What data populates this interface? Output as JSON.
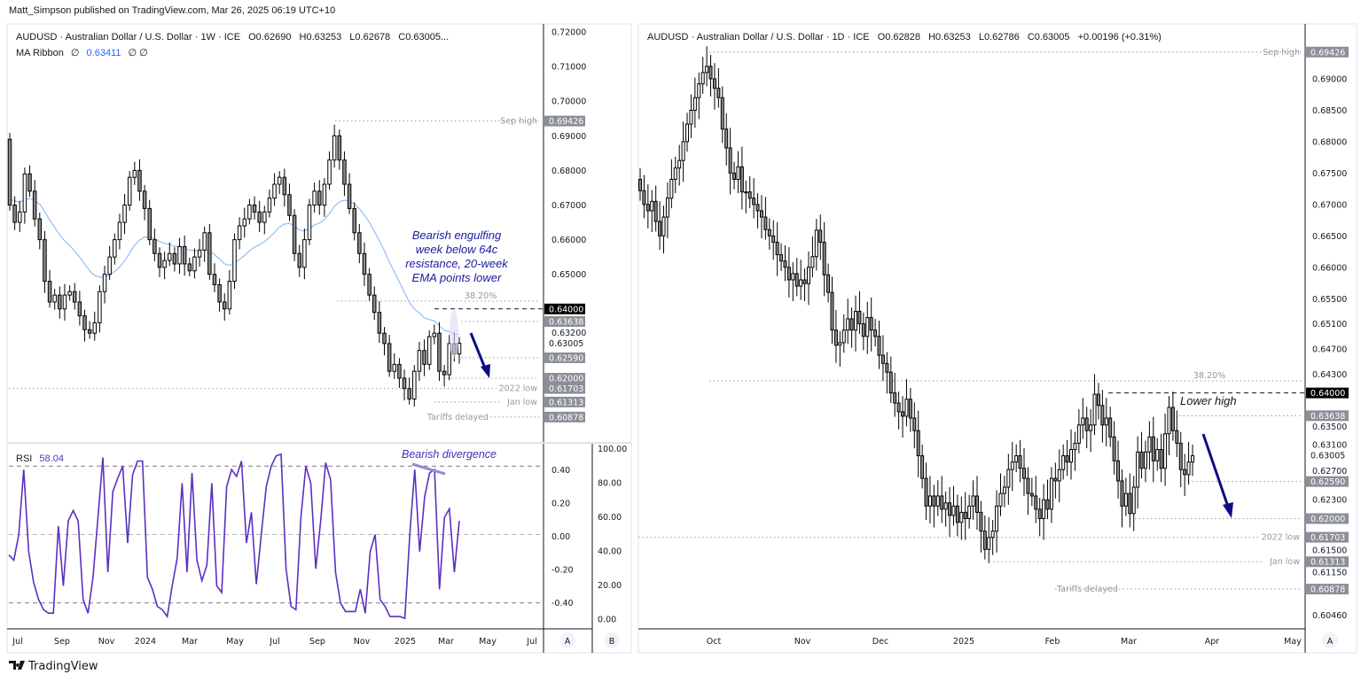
{
  "header": {
    "published": "Matt_Simpson published on TradingView.com, Mar 26, 2025 06:19 UTC+10"
  },
  "left_chart": {
    "title": "AUDUSD · Australian Dollar / U.S. Dollar · 1W · ICE",
    "ohlc": {
      "o": "O0.62690",
      "h": "H0.63253",
      "l": "L0.62678",
      "c": "C0.63005..."
    },
    "ma_label": "MA Ribbon",
    "ma_sym": "∅",
    "ma_value": "0.63411",
    "ma_sym2": "∅ ∅",
    "annotation": [
      "Bearish engulfing",
      "week below 64c",
      "resistance, 20-week",
      "EMA points lower"
    ],
    "fib_label": "38.20%",
    "level_notes": {
      "sep_high": "Sep high",
      "low_2022": "2022 low",
      "jan_low": "Jan low",
      "tariffs": "Tariffs delayed"
    },
    "price_ticks": [
      "0.72000",
      "0.71000",
      "0.70000",
      "0.69000",
      "0.68000",
      "0.67000",
      "0.66000",
      "0.65000",
      "0.63200"
    ],
    "price_labels": {
      "sep_high": "0.69426",
      "r64": "0.64000",
      "r636": "0.63638",
      "current": "0.63005",
      "s6259": "0.62590",
      "s62": "0.62000",
      "low_2022": "0.61703",
      "jan_low": "0.61313",
      "tariffs": "0.60878"
    },
    "time_labels": [
      "Jul",
      "Sep",
      "Nov",
      "2024",
      "Mar",
      "May",
      "Jul",
      "Sep",
      "Nov",
      "2025",
      "Mar",
      "May",
      "Jul"
    ],
    "rsi": {
      "label": "RSI",
      "value": "58.04",
      "annotation": "Bearish divergence",
      "axis_a": [
        "0.40",
        "0.20",
        "0.00",
        "-0.20",
        "-0.40"
      ],
      "axis_b": [
        "100.00",
        "80.00",
        "60.00",
        "40.00",
        "20.00",
        "0.00"
      ]
    },
    "scale_buttons": [
      "A",
      "B"
    ]
  },
  "right_chart": {
    "title": "AUDUSD · Australian Dollar / U.S. Dollar · 1D · ICE",
    "ohlc": {
      "o": "O0.62828",
      "h": "H0.63253",
      "l": "L0.62786",
      "c": "C0.63005",
      "chg": "+0.00196 (+0.31%)"
    },
    "fib_label": "38.20%",
    "annotation": "Lower high",
    "level_notes": {
      "sep_high": "Sep high",
      "low_2022": "2022 low",
      "jan_low": "Jan low",
      "tariffs": "Tariffs delayed"
    },
    "price_ticks": [
      "0.69000",
      "0.68500",
      "0.68000",
      "0.67500",
      "0.67000",
      "0.66500",
      "0.66000",
      "0.65500",
      "0.65100",
      "0.64700",
      "0.64300",
      "0.63500",
      "0.63100",
      "0.62700",
      "0.62300",
      "0.61500",
      "0.61150",
      "0.60460"
    ],
    "price_labels": {
      "sep_high": "0.69426",
      "r64": "0.64000",
      "r636": "0.63638",
      "current": "0.63005",
      "s6259": "0.62590",
      "s62": "0.62000",
      "low_2022": "0.61703",
      "jan_low": "0.61313",
      "tariffs": "0.60878"
    },
    "time_labels": [
      "Oct",
      "Nov",
      "Dec",
      "2025",
      "Feb",
      "Mar",
      "Apr",
      "May"
    ],
    "scale_buttons": [
      "A"
    ]
  },
  "footer": {
    "brand": "TradingView"
  },
  "colors": {
    "bull_fill": "#ffffff",
    "bear_fill": "#8a8a8a",
    "outline": "#000000",
    "ema": "#90bff9",
    "rsi": "#5b2fc0",
    "arrow": "#0d0d80",
    "annotation": "#1a1a9c"
  },
  "chart_data": [
    {
      "type": "candlestick",
      "timeframe": "1W",
      "x_range": [
        "Jun 2023",
        "Mar 2025"
      ],
      "ylim": [
        0.6046,
        0.72
      ],
      "open_first": 0.689,
      "close": [
        0.67,
        0.665,
        0.668,
        0.679,
        0.674,
        0.666,
        0.66,
        0.648,
        0.642,
        0.644,
        0.64,
        0.644,
        0.645,
        0.642,
        0.638,
        0.634,
        0.633,
        0.636,
        0.645,
        0.65,
        0.655,
        0.66,
        0.665,
        0.67,
        0.678,
        0.68,
        0.674,
        0.669,
        0.66,
        0.656,
        0.652,
        0.654,
        0.656,
        0.653,
        0.658,
        0.653,
        0.651,
        0.655,
        0.657,
        0.662,
        0.65,
        0.647,
        0.642,
        0.64,
        0.648,
        0.66,
        0.664,
        0.666,
        0.67,
        0.668,
        0.665,
        0.668,
        0.672,
        0.676,
        0.678,
        0.673,
        0.667,
        0.656,
        0.652,
        0.66,
        0.67,
        0.674,
        0.67,
        0.676,
        0.683,
        0.69,
        0.683,
        0.676,
        0.669,
        0.662,
        0.656,
        0.65,
        0.644,
        0.639,
        0.633,
        0.63,
        0.622,
        0.624,
        0.62,
        0.617,
        0.614,
        0.622,
        0.628,
        0.624,
        0.632,
        0.633,
        0.622,
        0.621,
        0.63,
        0.627,
        0.6301
      ],
      "ema_period": 20,
      "rsi": [
        38,
        35,
        50,
        88,
        40,
        22,
        12,
        6,
        4,
        4,
        55,
        20,
        58,
        64,
        58,
        12,
        4,
        25,
        60,
        95,
        28,
        75,
        83,
        90,
        45,
        85,
        93,
        93,
        25,
        18,
        8,
        6,
        2,
        20,
        36,
        80,
        28,
        86,
        35,
        23,
        32,
        80,
        20,
        16,
        78,
        88,
        84,
        93,
        45,
        63,
        21,
        50,
        78,
        90,
        96,
        97,
        30,
        8,
        6,
        60,
        90,
        80,
        30,
        58,
        92,
        82,
        28,
        10,
        5,
        5,
        5,
        18,
        4,
        40,
        50,
        12,
        8,
        2,
        2,
        2,
        1,
        50,
        88,
        40,
        72,
        86,
        88,
        18,
        60,
        65,
        28,
        58
      ]
    },
    {
      "type": "candlestick",
      "timeframe": "1D",
      "x_range": [
        "Sep 2024",
        "Mar 2025"
      ],
      "ylim": [
        0.6046,
        0.6943
      ],
      "open_first": 0.674,
      "close": [
        0.6722,
        0.67,
        0.669,
        0.6705,
        0.6673,
        0.665,
        0.668,
        0.671,
        0.674,
        0.6758,
        0.677,
        0.68,
        0.6828,
        0.685,
        0.687,
        0.6892,
        0.691,
        0.692,
        0.69,
        0.6885,
        0.687,
        0.682,
        0.679,
        0.675,
        0.674,
        0.676,
        0.672,
        0.672,
        0.671,
        0.67,
        0.669,
        0.668,
        0.666,
        0.665,
        0.664,
        0.662,
        0.661,
        0.66,
        0.658,
        0.659,
        0.657,
        0.658,
        0.6574,
        0.66,
        0.6617,
        0.6659,
        0.664,
        0.6588,
        0.656,
        0.65,
        0.6476,
        0.648,
        0.65,
        0.6518,
        0.65,
        0.653,
        0.651,
        0.649,
        0.652,
        0.65,
        0.649,
        0.646,
        0.6447,
        0.6433,
        0.64,
        0.6384,
        0.637,
        0.6363,
        0.639,
        0.636,
        0.634,
        0.63,
        0.6264,
        0.622,
        0.6236,
        0.622,
        0.6236,
        0.6215,
        0.6225,
        0.6205,
        0.622,
        0.6194,
        0.621,
        0.62,
        0.622,
        0.6236,
        0.621,
        0.618,
        0.6151,
        0.617,
        0.618,
        0.622,
        0.624,
        0.625,
        0.6278,
        0.629,
        0.63,
        0.628,
        0.6264,
        0.624,
        0.6236,
        0.6215,
        0.62,
        0.623,
        0.6215,
        0.6264,
        0.626,
        0.6278,
        0.63,
        0.629,
        0.631,
        0.632,
        0.6349,
        0.636,
        0.634,
        0.6349,
        0.6398,
        0.638,
        0.6349,
        0.636,
        0.633,
        0.6292,
        0.626,
        0.622,
        0.624,
        0.6208,
        0.625,
        0.6306,
        0.628,
        0.6306,
        0.633,
        0.6292,
        0.631,
        0.628,
        0.6335,
        0.6377,
        0.634,
        0.632,
        0.6278,
        0.627,
        0.629,
        0.63
      ]
    }
  ]
}
